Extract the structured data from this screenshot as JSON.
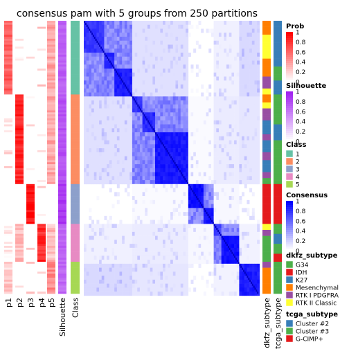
{
  "chart_data": {
    "type": "heatmap",
    "title": "consensus pam with 5 groups from 250 partitions",
    "n_groups": 5,
    "n_partitions": 250,
    "class_colors": {
      "1": "#66C2A5",
      "2": "#FC8D62",
      "3": "#8DA0CB",
      "4": "#E78AC3",
      "5": "#A6D854"
    },
    "class_order": [
      1,
      2,
      3,
      4,
      5
    ],
    "class_sizes": [
      37,
      45,
      20,
      19,
      16
    ],
    "columns": [
      "p1",
      "p2",
      "p3",
      "p4",
      "p5",
      "Silhouette",
      "Class",
      "dkfz_subtype",
      "tcga_subtype"
    ],
    "consensus_blocks": [
      {
        "class": 1,
        "sub_blocks": [
          {
            "size": 15,
            "value": 0.85
          },
          {
            "size": 8,
            "value": 0.9
          },
          {
            "size": 14,
            "value": 0.95
          }
        ]
      },
      {
        "class": 2,
        "sub_blocks": [
          {
            "size": 8,
            "value": 0.85
          },
          {
            "size": 10,
            "value": 0.9
          },
          {
            "size": 27,
            "value": 0.97
          }
        ]
      },
      {
        "class": 3,
        "sub_blocks": [
          {
            "size": 11,
            "value": 1.0
          },
          {
            "size": 9,
            "value": 1.0
          }
        ]
      },
      {
        "class": 4,
        "sub_blocks": [
          {
            "size": 6,
            "value": 0.8
          },
          {
            "size": 13,
            "value": 1.0
          }
        ]
      },
      {
        "class": 5,
        "sub_blocks": [
          {
            "size": 16,
            "value": 0.95
          }
        ]
      }
    ],
    "prob_mean_by_class": [
      [
        0.62,
        0.0,
        0.0,
        0.0,
        0.35
      ],
      [
        0.0,
        0.85,
        0.0,
        0.0,
        0.35
      ],
      [
        0.0,
        0.0,
        0.95,
        0.0,
        0.0
      ],
      [
        0.05,
        0.25,
        0.0,
        0.85,
        0.25
      ],
      [
        0.2,
        0.0,
        0.0,
        0.0,
        0.45
      ]
    ],
    "silhouette_by_class": [
      0.72,
      0.78,
      0.9,
      0.7,
      0.68
    ],
    "dkfz_by_class": [
      [
        "Mesenchymal",
        "Mesenchymal",
        "RTK II Classic",
        "RTK II Classic",
        "RTK II Classic",
        "RTK II Classic",
        "Mesenchymal",
        "Mesenchymal",
        "Mesenchymal",
        "RTK I PDGFRA",
        "RTK I PDGFRA",
        "RTK II Classic"
      ],
      [
        "Mesenchymal",
        "RTK II Classic",
        "RTK I PDGFRA",
        "RTK I PDGFRA",
        "K27",
        "K27",
        "RTK I PDGFRA",
        "K27",
        "K27",
        "RTK I PDGFRA",
        "K27",
        "K27",
        "RTK I PDGFRA",
        "G34"
      ],
      [
        "IDH",
        "IDH",
        "IDH",
        "IDH",
        "IDH",
        "IDH",
        "IDH"
      ],
      [
        "RTK II Classic",
        "RTK I PDGFRA",
        "G34",
        "G34",
        "G34",
        "G34",
        "G34"
      ],
      [
        "RTK I PDGFRA",
        "Mesenchymal",
        "Mesenchymal",
        "Mesenchymal",
        "Mesenchymal",
        "Mesenchymal"
      ]
    ],
    "tcga_by_class": [
      [
        "Cluster #2",
        "Cluster #2",
        "Cluster #2",
        "Cluster #3",
        "Cluster #2"
      ],
      [
        "Cluster #3",
        "Cluster #3",
        "Cluster #2",
        "Cluster #3",
        "Cluster #3",
        "Cluster #3"
      ],
      [
        "G-CIMP+",
        "G-CIMP+",
        "G-CIMP+",
        "G-CIMP+"
      ],
      [
        "Cluster #3",
        "Cluster #2",
        "Cluster #3",
        "G-CIMP+"
      ],
      [
        "Cluster #3",
        "Cluster #3",
        "Cluster #3"
      ]
    ]
  },
  "legends": {
    "prob": {
      "title": "Prob",
      "ticks": [
        "1",
        "0.8",
        "0.6",
        "0.4",
        "0.2",
        "0"
      ],
      "color_low": "#FFFFFF",
      "color_high": "#FF0000"
    },
    "silhouette": {
      "title": "Silhouette",
      "ticks": [
        "1",
        "0.8",
        "0.6",
        "0.4",
        "0.2",
        "0"
      ],
      "color_low": "#FFFFFF",
      "color_high": "#A020F0"
    },
    "class": {
      "title": "Class",
      "items": [
        "1",
        "2",
        "3",
        "4",
        "5"
      ]
    },
    "consensus": {
      "title": "Consensus",
      "ticks": [
        "1",
        "0.8",
        "0.6",
        "0.4",
        "0.2",
        "0"
      ],
      "color_low": "#FFFFFF",
      "color_high": "#0000FF"
    },
    "dkfz_subtype": {
      "title": "dkfz_subtype",
      "items": [
        {
          "label": "G34",
          "color": "#4DAF4A"
        },
        {
          "label": "IDH",
          "color": "#E41A1C"
        },
        {
          "label": "K27",
          "color": "#377EB8"
        },
        {
          "label": "Mesenchymal",
          "color": "#FF7F00"
        },
        {
          "label": "RTK I PDGFRA",
          "color": "#984EA3"
        },
        {
          "label": "RTK II Classic",
          "color": "#FFFF33"
        }
      ]
    },
    "tcga_subtype": {
      "title": "tcga_subtype",
      "items": [
        {
          "label": "Cluster #2",
          "color": "#377EB8"
        },
        {
          "label": "Cluster #3",
          "color": "#4DAF4A"
        },
        {
          "label": "G-CIMP+",
          "color": "#E41A1C"
        }
      ]
    }
  }
}
